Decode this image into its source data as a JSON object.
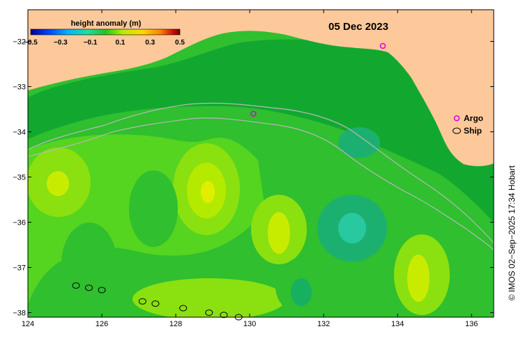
{
  "map": {
    "date": "05 Dec 2023",
    "credit": "© IMOS 02−Sep−2025 17:34 Hobart",
    "colors": {
      "land": "#fdc99a",
      "ocean_base": "#2fbf2f",
      "frame": "#000000",
      "isobath": "#b8b8b8"
    },
    "colorbar": {
      "title": "height anomaly (m)",
      "ticks": [
        "−0.5",
        "−0.3",
        "−0.1",
        "0.1",
        "0.3",
        "0.5"
      ],
      "stops": [
        "#00008c",
        "#0040ff",
        "#00b4ff",
        "#20e0a0",
        "#22c422",
        "#b8ee00",
        "#ffd800",
        "#ff8000",
        "#d01010",
        "#7a0000"
      ]
    },
    "x_axis": {
      "ticks": [
        "124",
        "126",
        "128",
        "130",
        "132",
        "134",
        "136"
      ],
      "values": [
        124,
        126,
        128,
        130,
        132,
        134,
        136
      ],
      "range": [
        124,
        136.6
      ]
    },
    "y_axis": {
      "ticks": [
        "−32",
        "−33",
        "−34",
        "−35",
        "−36",
        "−37",
        "−38"
      ],
      "values": [
        -32,
        -33,
        -34,
        -35,
        -36,
        -37,
        -38
      ],
      "range": [
        -38.1,
        -31.3
      ]
    },
    "legend": {
      "argo": {
        "label": "Argo",
        "color": "#e000e0"
      },
      "ship": {
        "label": "Ship",
        "color": "#000000"
      }
    },
    "argo_floats": [
      {
        "lon": 130.1,
        "lat": -33.6
      },
      {
        "lon": 133.6,
        "lat": -32.1
      }
    ],
    "ship_tracks": [
      {
        "lon": 125.3,
        "lat": -37.4
      },
      {
        "lon": 125.65,
        "lat": -37.45
      },
      {
        "lon": 126.0,
        "lat": -37.5
      },
      {
        "lon": 127.1,
        "lat": -37.75
      },
      {
        "lon": 127.45,
        "lat": -37.8
      },
      {
        "lon": 128.2,
        "lat": -37.9
      },
      {
        "lon": 128.9,
        "lat": -38.0
      },
      {
        "lon": 129.3,
        "lat": -38.05
      },
      {
        "lon": 129.7,
        "lat": -38.1
      }
    ]
  }
}
